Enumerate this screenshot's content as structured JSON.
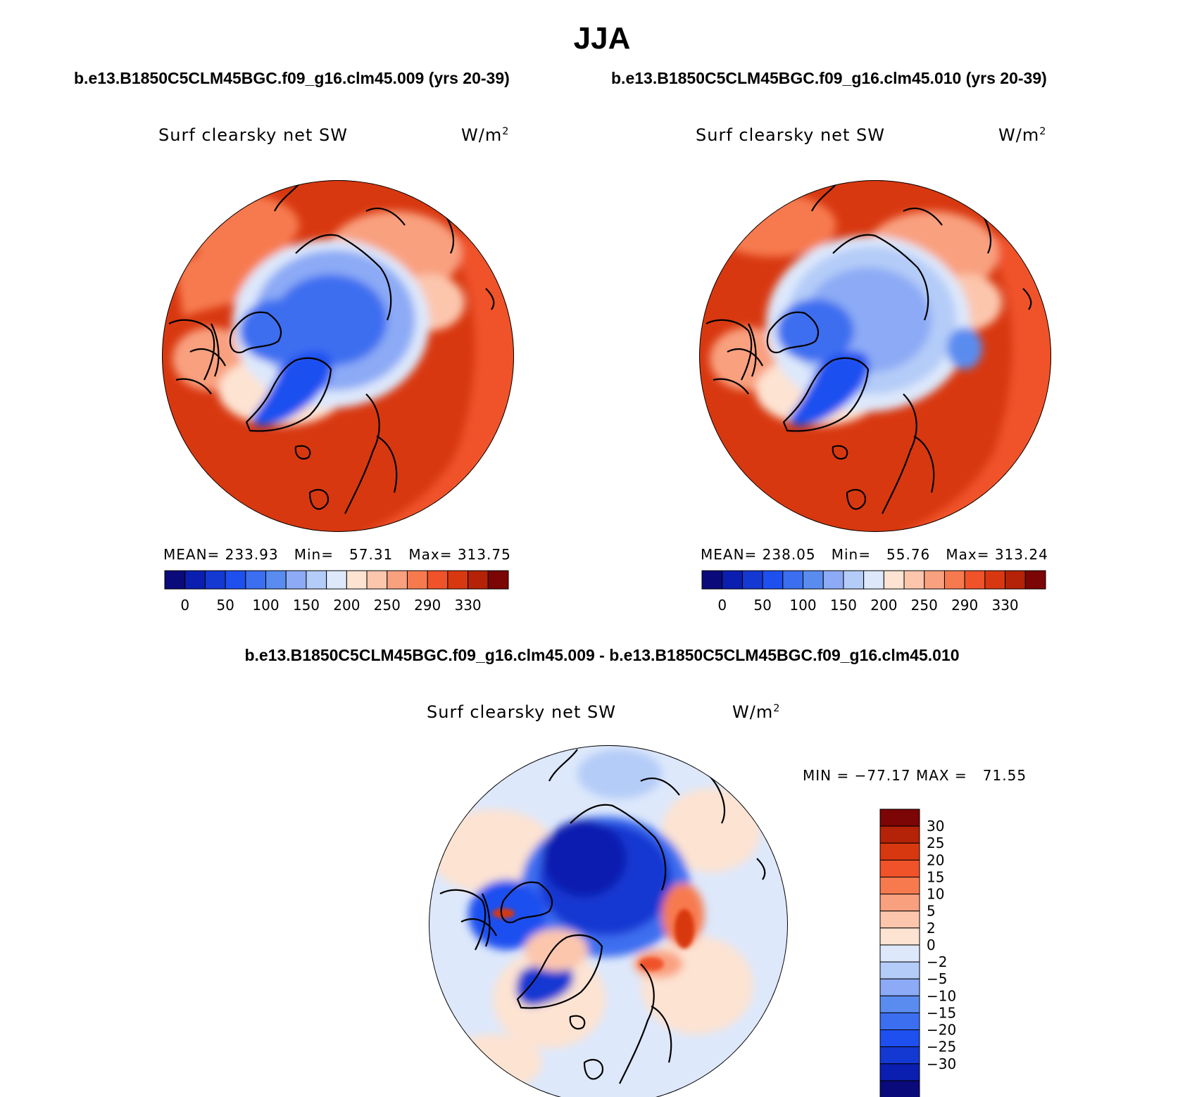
{
  "title": "JJA",
  "panel_left": {
    "case": "b.e13.B1850C5CLM45BGC.f09_g16.clm45.009 (yrs 20-39)",
    "variable": "Surf clearsky net SW",
    "units_base": "W/m",
    "units_exp": "2",
    "stats": "MEAN= 233.93   Min=   57.31   Max= 313.75"
  },
  "panel_right": {
    "case": "b.e13.B1850C5CLM45BGC.f09_g16.clm45.010 (yrs 20-39)",
    "variable": "Surf clearsky net SW",
    "units_base": "W/m",
    "units_exp": "2",
    "stats": "MEAN= 238.05   Min=   55.76   Max= 313.24"
  },
  "panel_diff": {
    "title": "b.e13.B1850C5CLM45BGC.f09_g16.clm45.009 - b.e13.B1850C5CLM45BGC.f09_g16.clm45.010",
    "variable": "Surf clearsky net SW",
    "units_base": "W/m",
    "units_exp": "2",
    "minmax": "MIN = −77.17 MAX =   71.55"
  },
  "colorbar_abs": {
    "colors": [
      "#0a0a7a",
      "#0a1eb0",
      "#1438d2",
      "#1e50f0",
      "#3c6ef0",
      "#5a8cf0",
      "#8caaf5",
      "#b4ccf8",
      "#dde8fb",
      "#fde3d2",
      "#fcc6ad",
      "#f9a07f",
      "#f77a4f",
      "#f0522a",
      "#d83810",
      "#b42208",
      "#7c0505"
    ],
    "labels": [
      "0",
      "50",
      "100",
      "150",
      "200",
      "250",
      "290",
      "330"
    ]
  },
  "colorbar_diff": {
    "colors": [
      "#7c0505",
      "#b42208",
      "#d83810",
      "#f0522a",
      "#f77a4f",
      "#f9a07f",
      "#fcc6ad",
      "#fde3d2",
      "#dde8fb",
      "#b4ccf8",
      "#8caaf5",
      "#5a8cf0",
      "#3c6ef0",
      "#1e50f0",
      "#1438d2",
      "#0a1eb0",
      "#0a0a7a"
    ],
    "labels": [
      "30",
      "25",
      "20",
      "15",
      "10",
      "5",
      "2",
      "0",
      "−2",
      "−5",
      "−10",
      "−15",
      "−20",
      "−25",
      "−30"
    ]
  }
}
